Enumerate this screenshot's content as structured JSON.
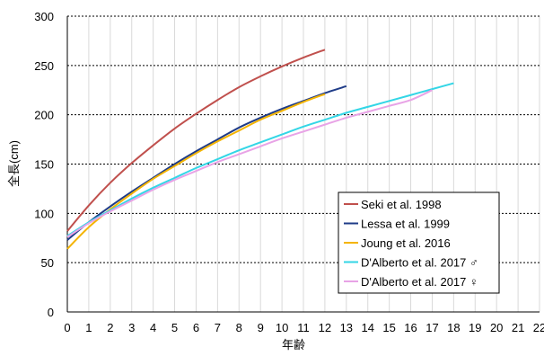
{
  "chart_data": {
    "type": "line",
    "xlabel": "年齢",
    "ylabel": "全長(cm)",
    "xlim": [
      0,
      22
    ],
    "ylim": [
      0,
      300
    ],
    "x_ticks": [
      0,
      1,
      2,
      3,
      4,
      5,
      6,
      7,
      8,
      9,
      10,
      11,
      12,
      13,
      14,
      15,
      16,
      17,
      18,
      19,
      20,
      21,
      22
    ],
    "y_ticks": [
      0,
      50,
      100,
      150,
      200,
      250,
      300
    ],
    "grid": {
      "horizontal": true,
      "horizontal_style": "dotted",
      "vertical": true,
      "vertical_style": "solid"
    },
    "legend_position": "bottom-right",
    "series": [
      {
        "name": "Seki et al. 1998",
        "color": "#c0504d",
        "x": [
          0,
          1,
          2,
          3,
          4,
          5,
          6,
          7,
          8,
          9,
          10,
          11,
          12
        ],
        "values": [
          82,
          108,
          131,
          151,
          169,
          186,
          201,
          215,
          228,
          239,
          249,
          258,
          266
        ]
      },
      {
        "name": "Lessa et al. 1999",
        "color": "#1f3c88",
        "x": [
          0,
          1,
          2,
          3,
          4,
          5,
          6,
          7,
          8,
          9,
          10,
          11,
          12,
          13
        ],
        "values": [
          73,
          91,
          107,
          122,
          136,
          150,
          163,
          175,
          187,
          197,
          206,
          214,
          222,
          229
        ]
      },
      {
        "name": "Joung et al. 2016",
        "color": "#f4b400",
        "x": [
          0,
          1,
          2,
          3,
          4,
          5,
          6,
          7,
          8,
          9,
          10,
          11,
          12
        ],
        "values": [
          64,
          86,
          104,
          120,
          135,
          148,
          161,
          173,
          184,
          195,
          204,
          213,
          221
        ]
      },
      {
        "name": "D'Alberto et al. 2017 ♂",
        "color": "#33d6e6",
        "x": [
          0,
          1,
          2,
          3,
          4,
          5,
          6,
          7,
          8,
          9,
          10,
          11,
          12,
          13,
          14,
          15,
          16,
          17,
          18
        ],
        "values": [
          77,
          91,
          103,
          115,
          126,
          136,
          146,
          155,
          164,
          172,
          180,
          188,
          195,
          202,
          208,
          214,
          220,
          226,
          232
        ]
      },
      {
        "name": "D'Alberto et al. 2017 ♀",
        "color": "#e8a3e6",
        "x": [
          0,
          1,
          2,
          3,
          4,
          5,
          6,
          7,
          8,
          9,
          10,
          11,
          12,
          13,
          14,
          15,
          16,
          17
        ],
        "values": [
          76,
          90,
          102,
          113,
          124,
          134,
          143,
          152,
          160,
          168,
          176,
          183,
          190,
          197,
          203,
          209,
          215,
          225
        ]
      }
    ]
  }
}
